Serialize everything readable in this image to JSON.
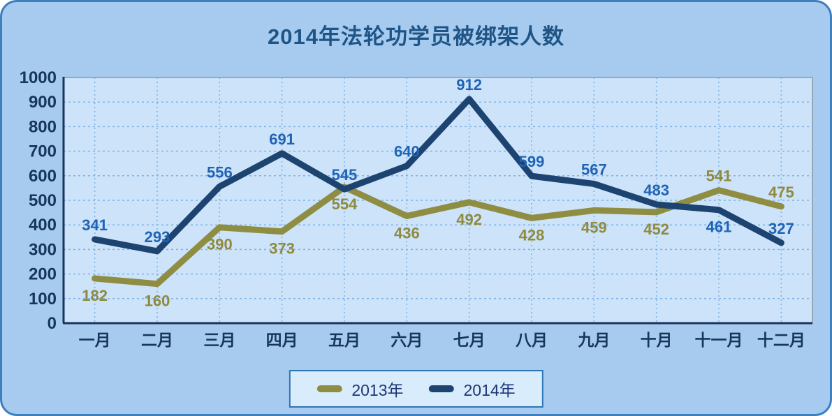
{
  "title": "2014年法轮功学员被绑架人数",
  "colors": {
    "frame_background": "#a7cbee",
    "frame_border": "#3e7fc1",
    "title_text": "#1f5586",
    "plot_background": "#cce3f9",
    "gridline": "#7db3e8",
    "axis_line": "#17365d",
    "plot_border_topright": "#8a99a8",
    "tick_label": "#17365d",
    "legend_background": "#d9ecfc",
    "legend_border": "#2e75b6",
    "legend_text": "#1f3575"
  },
  "chart_data": {
    "type": "line",
    "title": "2014年法轮功学员被绑架人数",
    "categories": [
      "一月",
      "二月",
      "三月",
      "四月",
      "五月",
      "六月",
      "七月",
      "八月",
      "九月",
      "十月",
      "十一月",
      "十二月"
    ],
    "series": [
      {
        "name": "2013年",
        "color": "#8f8d42",
        "label_color": "#8f8a3e",
        "values": [
          182,
          160,
          390,
          373,
          554,
          436,
          492,
          428,
          459,
          452,
          541,
          475
        ],
        "label_position": [
          "below",
          "below",
          "below",
          "below",
          "below",
          "below",
          "below",
          "below",
          "below",
          "below",
          "above",
          "above"
        ]
      },
      {
        "name": "2014年",
        "color": "#1d4370",
        "label_color": "#2063b4",
        "values": [
          341,
          293,
          556,
          691,
          545,
          640,
          912,
          599,
          567,
          483,
          461,
          327
        ],
        "label_position": [
          "above",
          "above",
          "above",
          "above",
          "above",
          "above",
          "above",
          "above",
          "above",
          "above",
          "below",
          "above"
        ]
      }
    ],
    "xlabel": "",
    "ylabel": "",
    "ylim": [
      0,
      1000
    ],
    "ytick_step": 100,
    "grid": true,
    "gridline_style": "dotted",
    "legend_position": "bottom"
  }
}
